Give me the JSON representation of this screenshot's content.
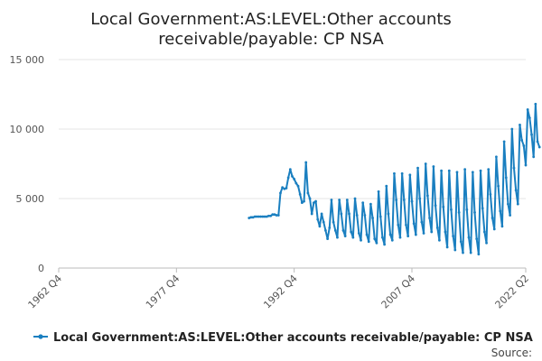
{
  "chart_data": {
    "type": "line",
    "title_lines": [
      "Local Government:AS:LEVEL:Other accounts",
      "receivable/payable: CP NSA"
    ],
    "xlabel": "",
    "ylabel": "",
    "ylim": [
      0,
      15000
    ],
    "y_ticks": [
      0,
      5000,
      10000,
      15000
    ],
    "y_tick_labels": [
      "0",
      "5 000",
      "10 000",
      "15 000"
    ],
    "x_range_quarters": [
      "1962 Q4",
      "2022 Q2"
    ],
    "x_tick_labels": [
      "1962 Q4",
      "1977 Q4",
      "1992 Q4",
      "2007 Q4",
      "2022 Q2"
    ],
    "grid": "horizontal",
    "legend": "bottom",
    "colors": {
      "series": "#1a7fc0"
    },
    "series": [
      {
        "name": "Local Government:AS:LEVEL:Other accounts receivable/payable: CP NSA",
        "start_quarter": "1987 Q1",
        "values": [
          3600,
          3650,
          3650,
          3700,
          3700,
          3700,
          3700,
          3700,
          3700,
          3700,
          3750,
          3750,
          3850,
          3850,
          3800,
          3800,
          5400,
          5800,
          5700,
          5750,
          6500,
          7100,
          6600,
          6400,
          6100,
          5900,
          5300,
          4700,
          4800,
          7600,
          5400,
          5000,
          3900,
          4700,
          4800,
          3500,
          3000,
          3900,
          3300,
          2700,
          2100,
          2900,
          4900,
          3300,
          2700,
          2200,
          4900,
          3900,
          2700,
          2300,
          4900,
          3900,
          2600,
          2200,
          5000,
          3800,
          2500,
          2000,
          4700,
          3800,
          2400,
          1900,
          4600,
          3600,
          2100,
          1800,
          5500,
          3700,
          2200,
          1700,
          5900,
          3900,
          2400,
          2000,
          6800,
          4900,
          3100,
          2200,
          6800,
          4900,
          3100,
          2300,
          6700,
          4800,
          3200,
          2400,
          7200,
          5000,
          3300,
          2500,
          7500,
          5200,
          3600,
          2600,
          7300,
          4500,
          2900,
          2000,
          7000,
          4400,
          2600,
          1500,
          7000,
          4200,
          2300,
          1300,
          6900,
          4000,
          1900,
          1100,
          7100,
          4200,
          2200,
          1100,
          6900,
          4000,
          2100,
          1000,
          7000,
          4300,
          2600,
          1800,
          7100,
          5300,
          3600,
          2800,
          8000,
          5900,
          4100,
          3000,
          9100,
          6500,
          4600,
          3800,
          10000,
          7200,
          5600,
          4600,
          10300,
          9200,
          8800,
          7400,
          11400,
          10800,
          9600,
          8000,
          11800,
          9100,
          8700
        ]
      }
    ],
    "source_label": "Source:"
  }
}
